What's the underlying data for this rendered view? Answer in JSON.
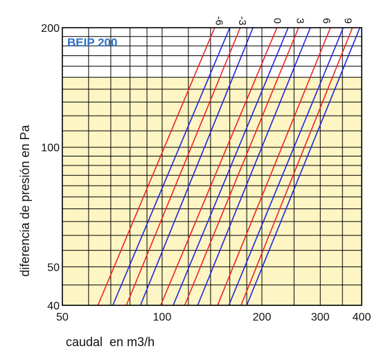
{
  "chart_data": {
    "type": "line",
    "title": "BEIP 200",
    "title_color": "#2e6fc4",
    "xlabel": "caudal  en m3/h",
    "ylabel": "diferencia de presión en Pa",
    "x_scale": "log",
    "y_scale": "log",
    "xlim": [
      50,
      400
    ],
    "ylim": [
      40,
      200
    ],
    "x_tick_labels": [
      {
        "value": 50,
        "label": "50"
      },
      {
        "value": 100,
        "label": "100"
      },
      {
        "value": 200,
        "label": "200"
      },
      {
        "value": 300,
        "label": "300"
      },
      {
        "value": 400,
        "label": "400"
      }
    ],
    "y_tick_labels": [
      {
        "value": 40,
        "label": "40"
      },
      {
        "value": 50,
        "label": "50"
      },
      {
        "value": 100,
        "label": "100"
      },
      {
        "value": 200,
        "label": "200"
      }
    ],
    "x_grid": [
      50,
      60,
      70,
      80,
      90,
      100,
      120,
      140,
      160,
      180,
      200,
      250,
      300,
      350,
      400
    ],
    "y_grid": [
      40,
      45,
      50,
      55,
      60,
      65,
      70,
      75,
      80,
      85,
      90,
      95,
      100,
      110,
      120,
      130,
      140,
      150,
      160,
      170,
      180,
      190,
      200
    ],
    "grid": true,
    "shaded_region": {
      "y_range": [
        40,
        150
      ],
      "color": "#fdf5c4"
    },
    "colors": {
      "red": "#ee2222",
      "blue": "#2222dd",
      "grid": "#000000"
    },
    "top_labels": [
      {
        "label": "-6",
        "x": 148
      },
      {
        "label": "-3",
        "x": 174
      },
      {
        "label": "0",
        "x": 222
      },
      {
        "label": "3",
        "x": 260
      },
      {
        "label": "6",
        "x": 312
      },
      {
        "label": "9",
        "x": 362
      }
    ],
    "series": [
      {
        "color": "red",
        "points": [
          [
            64,
            40
          ],
          [
            144,
            200
          ]
        ]
      },
      {
        "color": "blue",
        "points": [
          [
            71,
            40
          ],
          [
            160,
            200
          ]
        ]
      },
      {
        "color": "red",
        "points": [
          [
            78,
            40
          ],
          [
            172,
            200
          ]
        ]
      },
      {
        "color": "blue",
        "points": [
          [
            86,
            40
          ],
          [
            188,
            200
          ]
        ]
      },
      {
        "color": "red",
        "points": [
          [
            99,
            40
          ],
          [
            222,
            200
          ]
        ]
      },
      {
        "color": "blue",
        "points": [
          [
            108,
            40
          ],
          [
            240,
            200
          ]
        ]
      },
      {
        "color": "red",
        "points": [
          [
            117,
            40
          ],
          [
            258,
            200
          ]
        ]
      },
      {
        "color": "blue",
        "points": [
          [
            128,
            40
          ],
          [
            280,
            200
          ]
        ]
      },
      {
        "color": "red",
        "points": [
          [
            147,
            40
          ],
          [
            322,
            200
          ]
        ]
      },
      {
        "color": "blue",
        "points": [
          [
            159,
            40
          ],
          [
            352,
            200
          ]
        ]
      },
      {
        "color": "red",
        "points": [
          [
            173,
            40
          ],
          [
            375,
            200
          ]
        ]
      },
      {
        "color": "blue",
        "points": [
          [
            180,
            40
          ],
          [
            395,
            200
          ]
        ]
      }
    ]
  }
}
